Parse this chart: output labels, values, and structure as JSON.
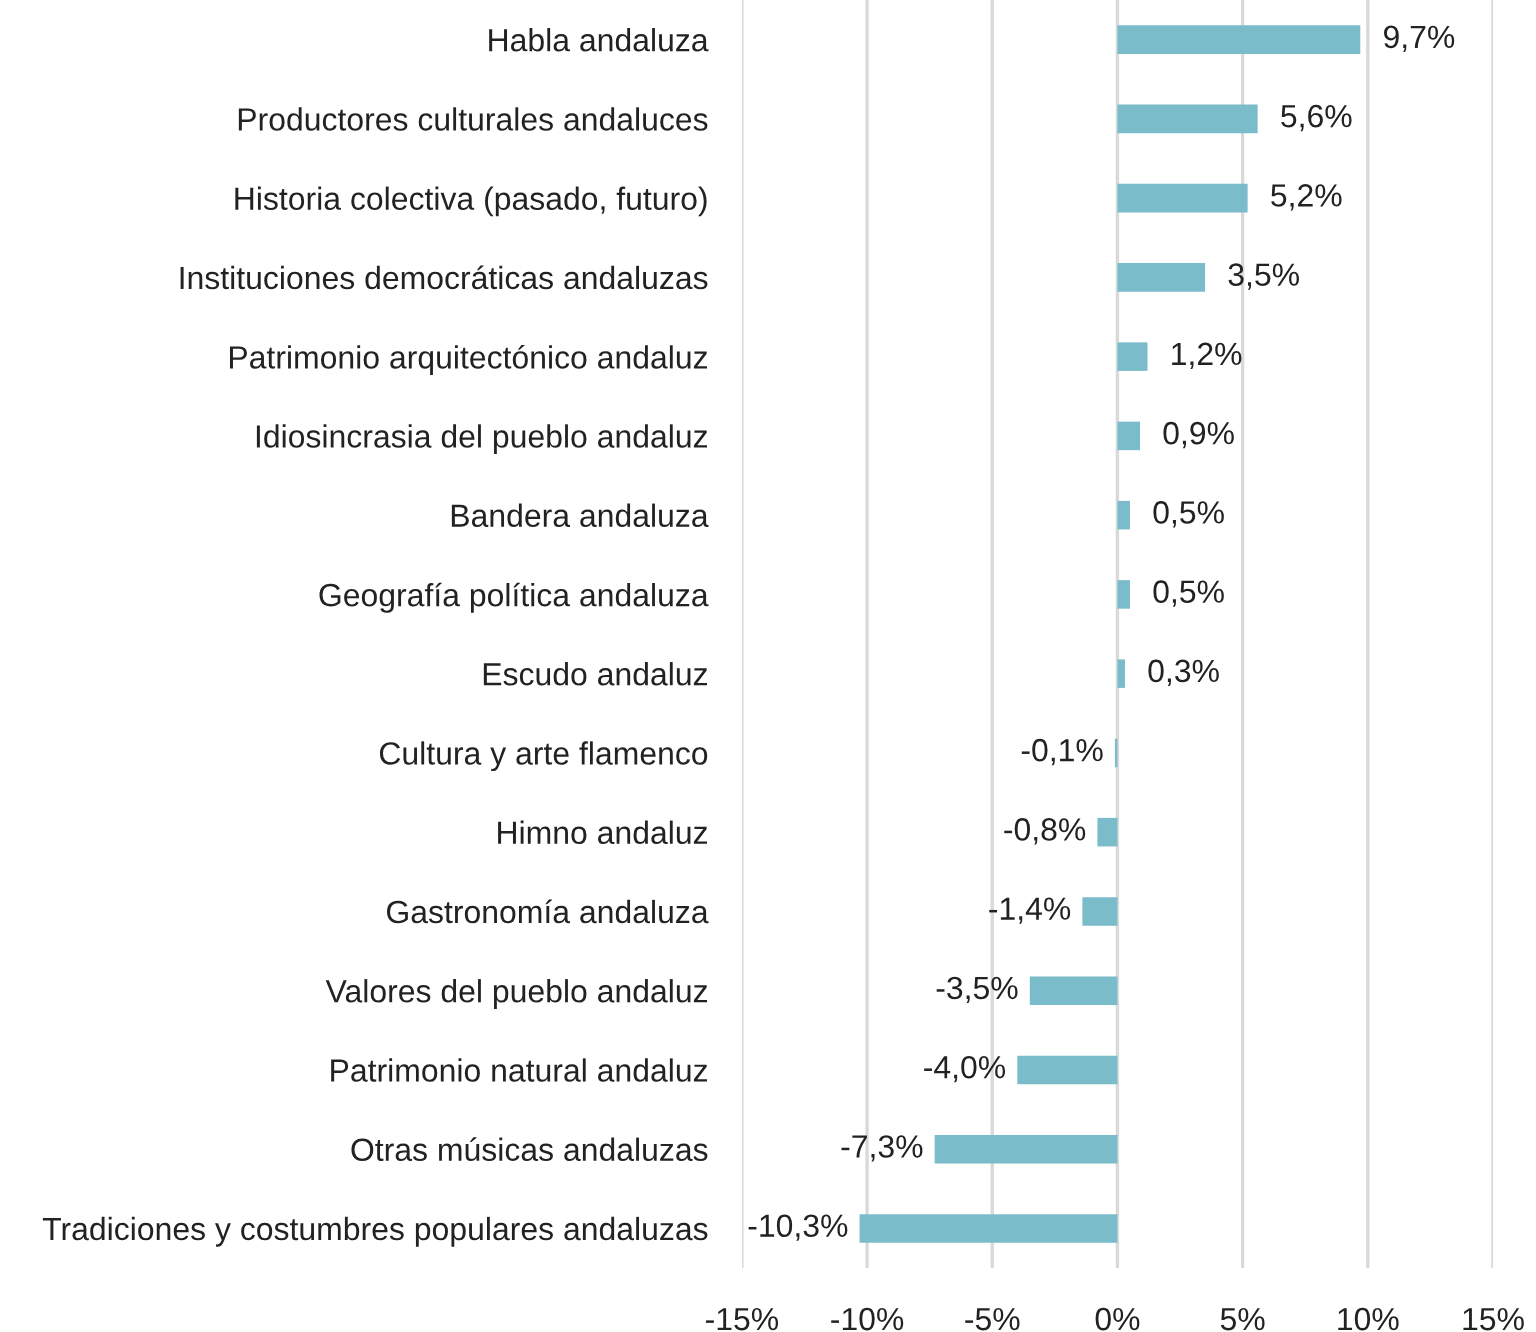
{
  "chart_data": {
    "type": "bar",
    "orientation": "horizontal",
    "categories": [
      "Habla andaluza",
      "Productores culturales andaluces",
      "Historia colectiva (pasado, futuro)",
      "Instituciones democráticas andaluzas",
      "Patrimonio arquitectónico andaluz",
      "Idiosincrasia del pueblo andaluz",
      "Bandera andaluza",
      "Geografía política andaluza",
      "Escudo andaluz",
      "Cultura y arte flamenco",
      "Himno andaluz",
      "Gastronomía andaluza",
      "Valores del pueblo andaluz",
      "Patrimonio natural andaluz",
      "Otras músicas andaluzas",
      "Tradiciones y costumbres populares andaluzas"
    ],
    "values": [
      9.7,
      5.6,
      5.2,
      3.5,
      1.2,
      0.9,
      0.5,
      0.5,
      0.3,
      -0.1,
      -0.8,
      -1.4,
      -3.5,
      -4.0,
      -7.3,
      -10.3
    ],
    "value_labels": [
      "9,7%",
      "5,6%",
      "5,2%",
      "3,5%",
      "1,2%",
      "0,9%",
      "0,5%",
      "0,5%",
      "0,3%",
      "-0,1%",
      "-0,8%",
      "-1,4%",
      "-3,5%",
      "-4,0%",
      "-7,3%",
      "-10,3%"
    ],
    "color": "#7bbccb",
    "xlim": [
      -15,
      15
    ],
    "xticks": [
      {
        "value": -15,
        "label": "-15%"
      },
      {
        "value": -10,
        "label": "-10%"
      },
      {
        "value": -5,
        "label": "-5%"
      },
      {
        "value": 0,
        "label": "0%"
      },
      {
        "value": 5,
        "label": "5%"
      },
      {
        "value": 10,
        "label": "10%"
      },
      {
        "value": 15,
        "label": "15%"
      }
    ],
    "grid": "x"
  }
}
